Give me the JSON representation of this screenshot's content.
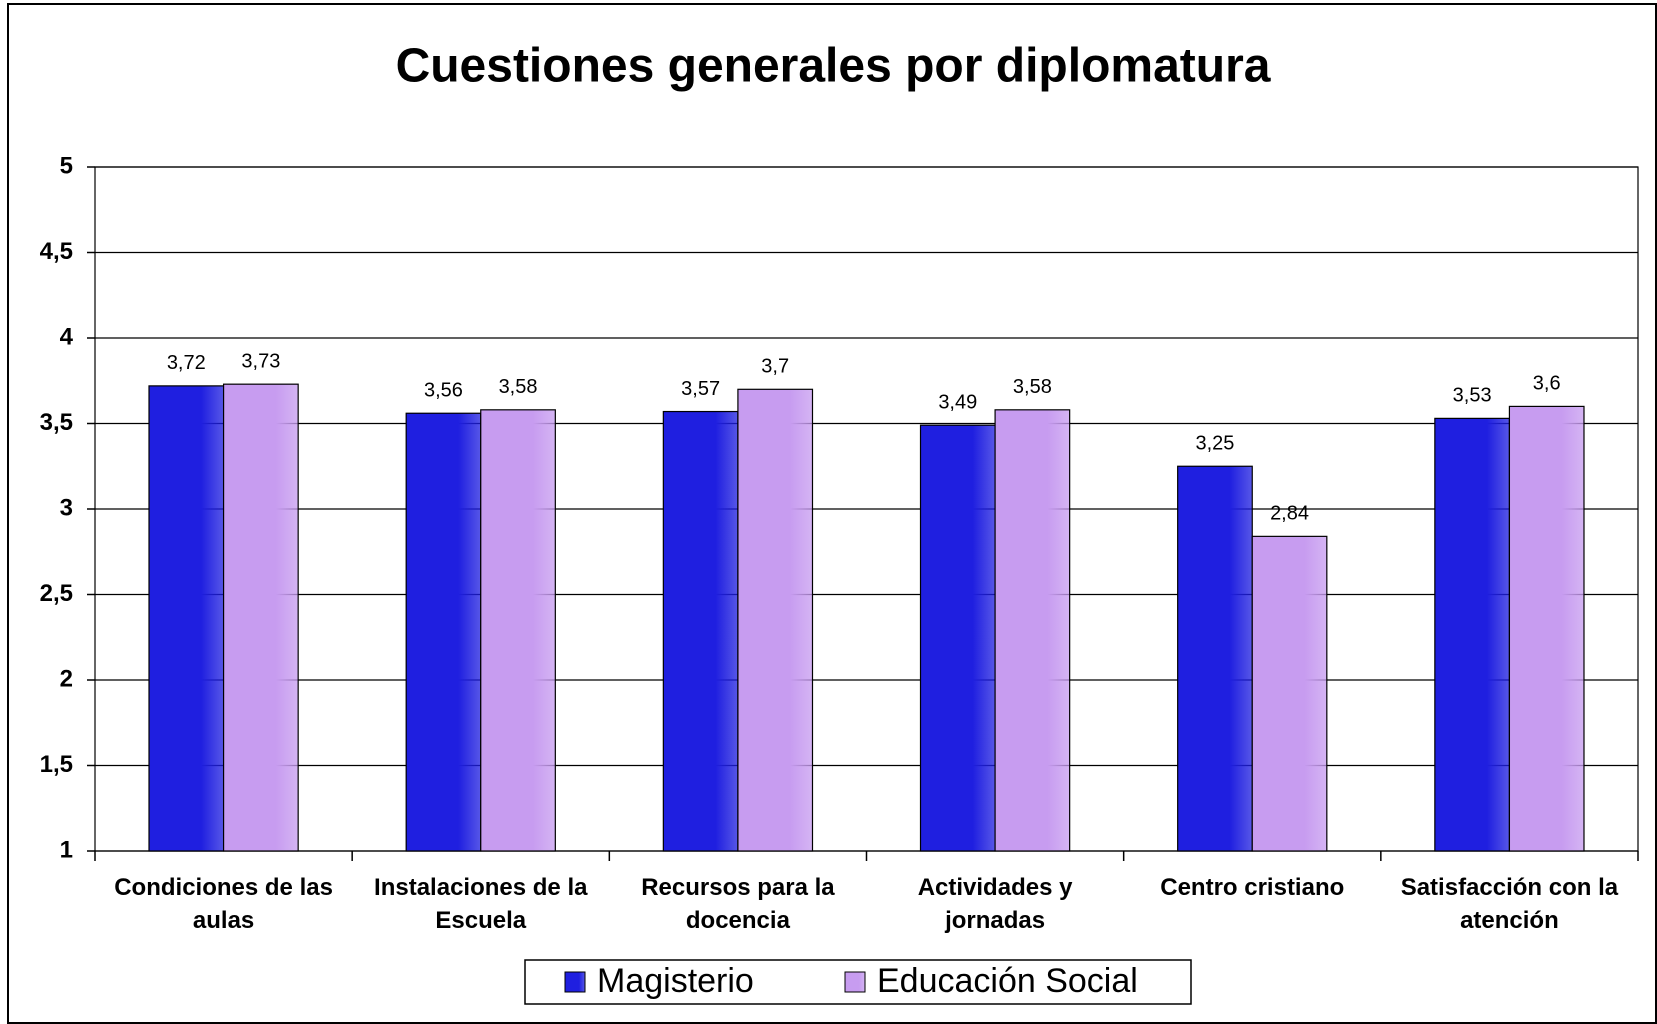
{
  "chart_data": {
    "type": "bar",
    "title": "Cuestiones generales por diplomatura",
    "categories": [
      "Condiciones de las aulas",
      "Instalaciones de la Escuela",
      "Recursos para la docencia",
      "Actividades y jornadas",
      "Centro cristiano",
      "Satisfacción con la atención"
    ],
    "series": [
      {
        "name": "Magisterio",
        "color": "#1f1fe0",
        "values": [
          3.72,
          3.56,
          3.57,
          3.49,
          3.25,
          3.53
        ],
        "value_labels": [
          "3,72",
          "3,56",
          "3,57",
          "3,49",
          "3,25",
          "3,53"
        ]
      },
      {
        "name": "Educación Social",
        "color": "#c79cf0",
        "values": [
          3.73,
          3.58,
          3.7,
          3.58,
          2.84,
          3.6
        ],
        "value_labels": [
          "3,73",
          "3,58",
          "3,7",
          "3,58",
          "2,84",
          "3,6"
        ]
      }
    ],
    "ylim": [
      1,
      5
    ],
    "yticks": [
      1,
      {
        "value": 1.5,
        "label": "1,5"
      },
      2,
      {
        "value": 2.5,
        "label": "2,5"
      },
      3,
      {
        "value": 3.5,
        "label": "3,5"
      },
      4,
      {
        "value": 4.5,
        "label": "4,5"
      },
      5
    ],
    "grid": true,
    "legend": "bottom"
  }
}
